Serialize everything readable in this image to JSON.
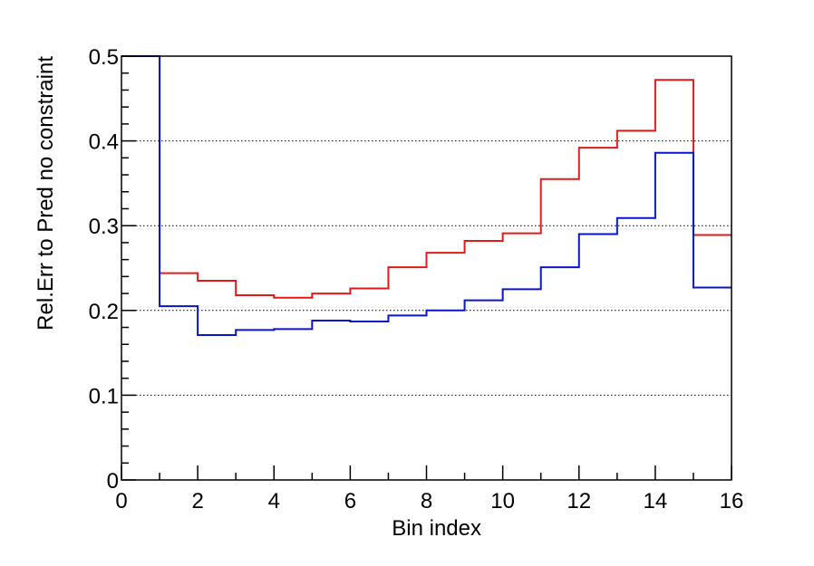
{
  "chart_data": {
    "type": "step",
    "title": "",
    "xlabel": "Bin index",
    "ylabel": "Rel.Err to Pred no constraint",
    "xlim": [
      0,
      16
    ],
    "ylim": [
      0,
      0.5
    ],
    "x_ticks": [
      0,
      2,
      4,
      6,
      8,
      10,
      12,
      14,
      16
    ],
    "x_tick_labels": [
      "0",
      "2",
      "4",
      "6",
      "8",
      "10",
      "12",
      "14",
      "16"
    ],
    "y_ticks": [
      0,
      0.1,
      0.2,
      0.3,
      0.4,
      0.5
    ],
    "y_tick_labels": [
      "0",
      "0.1",
      "0.2",
      "0.3",
      "0.4",
      "0.5"
    ],
    "grid": "horizontal dotted",
    "bin_edges": [
      0,
      1,
      2,
      3,
      4,
      5,
      6,
      7,
      8,
      9,
      10,
      11,
      12,
      13,
      14,
      15,
      16
    ],
    "series": [
      {
        "color": "#e31a1c",
        "values": [
          0.5,
          0.244,
          0.235,
          0.218,
          0.215,
          0.22,
          0.226,
          0.251,
          0.268,
          0.282,
          0.291,
          0.355,
          0.392,
          0.412,
          0.472,
          0.289
        ]
      },
      {
        "color": "#0a14c8",
        "values": [
          0.5,
          0.205,
          0.171,
          0.177,
          0.178,
          0.188,
          0.187,
          0.194,
          0.2,
          0.212,
          0.225,
          0.251,
          0.29,
          0.309,
          0.386,
          0.227
        ]
      }
    ]
  }
}
